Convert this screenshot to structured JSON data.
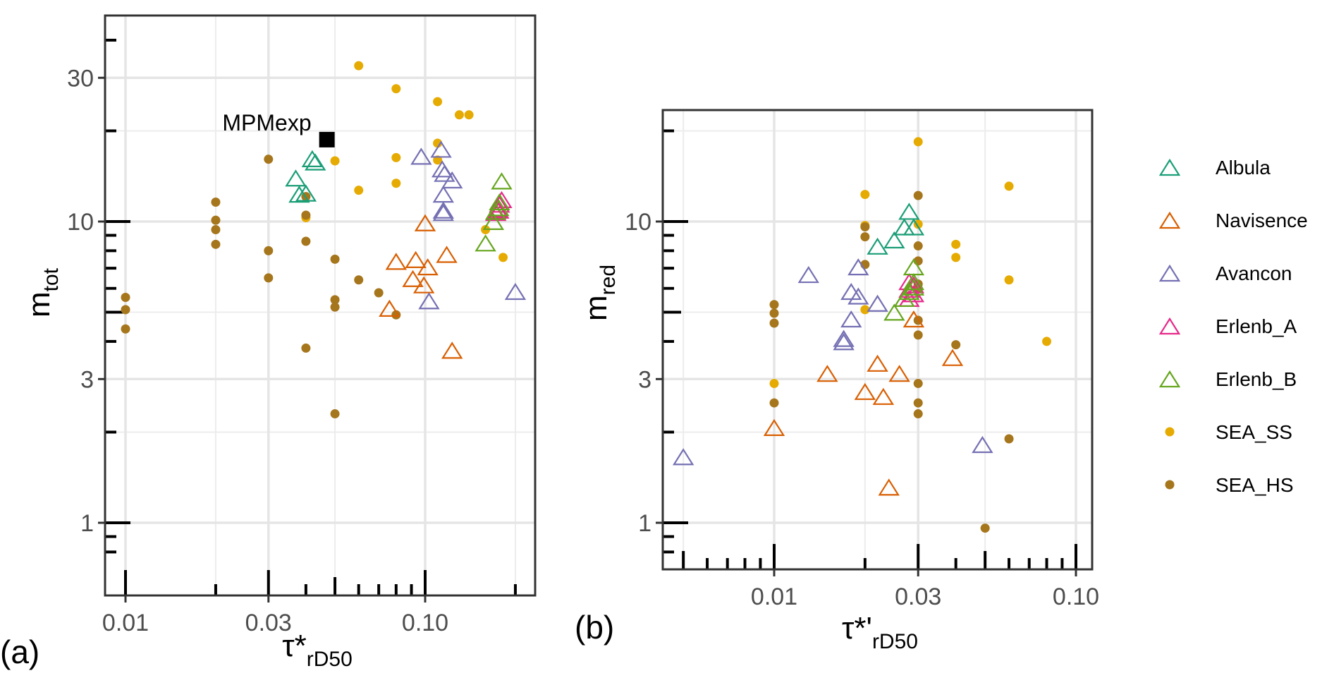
{
  "chart_data": [
    {
      "panel": "(a)",
      "type": "scatter",
      "xscale": "log",
      "yscale": "log",
      "xlabel": "τ*",
      "xlabel_sub": "rD50",
      "ylabel": "m",
      "ylabel_sub": "tot",
      "xlim": [
        0.0093,
        0.23
      ],
      "ylim": [
        0.8,
        47
      ],
      "xticks": [
        0.01,
        0.03,
        0.1
      ],
      "xtick_labels": [
        "0.01",
        "0.03",
        "0.10"
      ],
      "yticks": [
        1,
        3,
        10,
        30
      ],
      "ytick_labels": [
        "1",
        "3",
        "10",
        "30"
      ],
      "grid": true,
      "annotation": {
        "text": "MPMexp",
        "x": 0.047,
        "y": 18.7,
        "marker": "square"
      },
      "series": [
        {
          "name": "Albula",
          "points": [
            [
              0.042,
              16.0
            ],
            [
              0.043,
              15.6
            ],
            [
              0.037,
              13.8
            ],
            [
              0.038,
              12.2
            ],
            [
              0.04,
              12.3
            ]
          ]
        },
        {
          "name": "Navisence",
          "points": [
            [
              0.1,
              9.8
            ],
            [
              0.08,
              7.3
            ],
            [
              0.093,
              7.4
            ],
            [
              0.102,
              7.0
            ],
            [
              0.118,
              7.7
            ],
            [
              0.091,
              6.4
            ],
            [
              0.099,
              6.1
            ],
            [
              0.076,
              5.1
            ],
            [
              0.123,
              3.7
            ]
          ]
        },
        {
          "name": "Avancon",
          "points": [
            [
              0.097,
              16.3
            ],
            [
              0.113,
              17.2
            ],
            [
              0.114,
              14.8
            ],
            [
              0.116,
              14.3
            ],
            [
              0.123,
              13.6
            ],
            [
              0.115,
              12.2
            ],
            [
              0.115,
              10.8
            ],
            [
              0.115,
              10.6
            ],
            [
              0.103,
              5.4
            ],
            [
              0.2,
              5.8
            ]
          ]
        },
        {
          "name": "Erlenb_A",
          "points": [
            [
              0.18,
              11.7
            ],
            [
              0.177,
              11.3
            ],
            [
              0.174,
              10.9
            ],
            [
              0.176,
              10.8
            ],
            [
              0.172,
              10.6
            ]
          ]
        },
        {
          "name": "Erlenb_B",
          "points": [
            [
              0.18,
              13.5
            ],
            [
              0.177,
              11.5
            ],
            [
              0.176,
              11.0
            ],
            [
              0.172,
              10.7
            ],
            [
              0.169,
              9.9
            ],
            [
              0.159,
              8.4
            ]
          ]
        },
        {
          "name": "SEA_SS",
          "points": [
            [
              0.06,
              32.9
            ],
            [
              0.08,
              27.6
            ],
            [
              0.11,
              25.0
            ],
            [
              0.13,
              22.6
            ],
            [
              0.14,
              22.6
            ],
            [
              0.11,
              18.2
            ],
            [
              0.05,
              15.9
            ],
            [
              0.08,
              16.3
            ],
            [
              0.11,
              16.0
            ],
            [
              0.08,
              13.4
            ],
            [
              0.06,
              12.7
            ],
            [
              0.04,
              10.3
            ],
            [
              0.159,
              9.4
            ],
            [
              0.182,
              7.6
            ]
          ]
        },
        {
          "name": "SEA_HS",
          "points": [
            [
              0.01,
              5.6
            ],
            [
              0.01,
              5.1
            ],
            [
              0.01,
              4.4
            ],
            [
              0.02,
              11.6
            ],
            [
              0.02,
              10.1
            ],
            [
              0.02,
              9.4
            ],
            [
              0.02,
              8.4
            ],
            [
              0.03,
              16.1
            ],
            [
              0.03,
              8.0
            ],
            [
              0.03,
              6.5
            ],
            [
              0.04,
              12.1
            ],
            [
              0.04,
              10.5
            ],
            [
              0.04,
              8.6
            ],
            [
              0.04,
              3.8
            ],
            [
              0.05,
              7.5
            ],
            [
              0.05,
              5.5
            ],
            [
              0.05,
              5.2
            ],
            [
              0.05,
              2.3
            ],
            [
              0.06,
              6.4
            ],
            [
              0.07,
              5.8
            ],
            [
              0.08,
              4.9
            ]
          ]
        }
      ]
    },
    {
      "panel": "(b)",
      "type": "scatter",
      "xscale": "log",
      "yscale": "log",
      "xlabel": "τ*'",
      "xlabel_sub": "rD50",
      "ylabel": "m",
      "ylabel_sub": "red",
      "xlim": [
        0.0044,
        0.12
      ],
      "ylim": [
        0.8,
        24
      ],
      "xticks": [
        0.01,
        0.03,
        0.1
      ],
      "xtick_labels": [
        "0.01",
        "0.03",
        "0.10"
      ],
      "yticks": [
        1,
        3,
        10
      ],
      "ytick_labels": [
        "1",
        "3",
        "10"
      ],
      "grid": true,
      "series": [
        {
          "name": "Albula",
          "points": [
            [
              0.028,
              10.7
            ],
            [
              0.027,
              9.5
            ],
            [
              0.029,
              9.5
            ],
            [
              0.025,
              8.6
            ],
            [
              0.022,
              8.2
            ]
          ]
        },
        {
          "name": "Navisence",
          "points": [
            [
              0.01,
              2.05
            ],
            [
              0.015,
              3.1
            ],
            [
              0.022,
              3.35
            ],
            [
              0.02,
              2.7
            ],
            [
              0.023,
              2.6
            ],
            [
              0.026,
              3.1
            ],
            [
              0.029,
              4.7
            ],
            [
              0.039,
              3.5
            ],
            [
              0.024,
              1.3
            ]
          ]
        },
        {
          "name": "Avancon",
          "points": [
            [
              0.013,
              6.6
            ],
            [
              0.019,
              7.0
            ],
            [
              0.018,
              5.8
            ],
            [
              0.019,
              5.6
            ],
            [
              0.022,
              5.3
            ],
            [
              0.018,
              4.7
            ],
            [
              0.017,
              4.05
            ],
            [
              0.017,
              3.95
            ],
            [
              0.005,
              1.64
            ],
            [
              0.049,
              1.8
            ]
          ]
        },
        {
          "name": "Erlenb_A",
          "points": [
            [
              0.028,
              6.25
            ],
            [
              0.029,
              6.1
            ],
            [
              0.028,
              5.9
            ],
            [
              0.029,
              5.7
            ],
            [
              0.028,
              5.5
            ]
          ]
        },
        {
          "name": "Erlenb_B",
          "points": [
            [
              0.029,
              7.0
            ],
            [
              0.029,
              6.25
            ],
            [
              0.029,
              6.0
            ],
            [
              0.028,
              5.8
            ],
            [
              0.027,
              5.5
            ],
            [
              0.025,
              4.95
            ]
          ]
        },
        {
          "name": "SEA_SS",
          "points": [
            [
              0.03,
              18.4
            ],
            [
              0.02,
              12.3
            ],
            [
              0.06,
              13.1
            ],
            [
              0.02,
              9.7
            ],
            [
              0.03,
              9.8
            ],
            [
              0.04,
              8.4
            ],
            [
              0.04,
              7.6
            ],
            [
              0.06,
              6.4
            ],
            [
              0.02,
              5.1
            ],
            [
              0.08,
              4.0
            ],
            [
              0.01,
              2.9
            ]
          ]
        },
        {
          "name": "SEA_HS",
          "points": [
            [
              0.03,
              12.2
            ],
            [
              0.02,
              9.6
            ],
            [
              0.02,
              8.9
            ],
            [
              0.03,
              8.3
            ],
            [
              0.03,
              7.4
            ],
            [
              0.02,
              7.2
            ],
            [
              0.03,
              6.2
            ],
            [
              0.03,
              6.0
            ],
            [
              0.01,
              5.3
            ],
            [
              0.01,
              4.96
            ],
            [
              0.01,
              4.6
            ],
            [
              0.03,
              4.7
            ],
            [
              0.03,
              4.2
            ],
            [
              0.04,
              3.9
            ],
            [
              0.01,
              2.5
            ],
            [
              0.03,
              2.9
            ],
            [
              0.03,
              2.5
            ],
            [
              0.03,
              2.3
            ],
            [
              0.06,
              1.9
            ],
            [
              0.05,
              0.96
            ]
          ]
        }
      ]
    }
  ],
  "legend": {
    "placement": "right",
    "items": [
      {
        "name": "Albula",
        "shape": "triangle-open",
        "color": "#1b9e77"
      },
      {
        "name": "Navisence",
        "shape": "triangle-open",
        "color": "#d95f02"
      },
      {
        "name": "Avancon",
        "shape": "triangle-open",
        "color": "#7570b3"
      },
      {
        "name": "Erlenb_A",
        "shape": "triangle-open",
        "color": "#e7298a"
      },
      {
        "name": "Erlenb_B",
        "shape": "triangle-open",
        "color": "#66a61e"
      },
      {
        "name": "SEA_SS",
        "shape": "circle-filled",
        "color": "#e6ab02"
      },
      {
        "name": "SEA_HS",
        "shape": "circle-filled",
        "color": "#a6761d"
      }
    ]
  },
  "panel_tags": [
    "(a)",
    "(b)"
  ]
}
